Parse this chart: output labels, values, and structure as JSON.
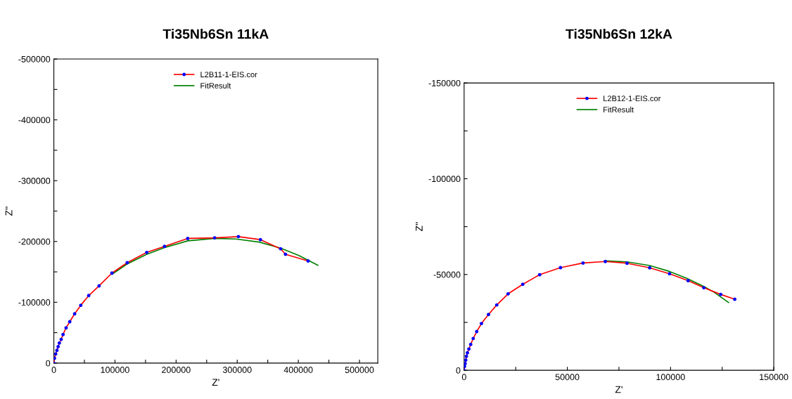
{
  "chart_data": [
    {
      "type": "line",
      "title": "Ti35Nb6Sn 11kA",
      "xlabel": "Z'",
      "ylabel": "Z''",
      "xlim": [
        0,
        530000
      ],
      "ylim": [
        0,
        -500000
      ],
      "xticks": [
        0,
        {
          "value": 50000,
          "label": null
        },
        100000,
        {
          "value": 150000,
          "label": null
        },
        200000,
        {
          "value": 250000,
          "label": null
        },
        300000,
        {
          "value": 350000,
          "label": null
        },
        400000,
        {
          "value": 450000,
          "label": null
        },
        500000
      ],
      "yticks": [
        0,
        {
          "value": -50000,
          "label": null
        },
        -100000,
        {
          "value": -150000,
          "label": null
        },
        -200000,
        {
          "value": -250000,
          "label": null
        },
        -300000,
        {
          "value": -350000,
          "label": null
        },
        -400000,
        {
          "value": -450000,
          "label": null
        },
        -500000
      ],
      "grid": false,
      "legend": "top",
      "series": [
        {
          "name": "L2B11-1-EIS.cor",
          "color": "#ff0000",
          "marker": "circle",
          "x": [
            0,
            1000,
            3000,
            5000,
            7000,
            9000,
            12000,
            15000,
            20000,
            26000,
            34000,
            44000,
            57000,
            74000,
            95000,
            120000,
            152000,
            181000,
            219000,
            263000,
            302000,
            338000,
            371000,
            379000,
            416000
          ],
          "values": [
            0,
            -8000,
            -15000,
            -21000,
            -27000,
            -33000,
            -39000,
            -47000,
            -58000,
            -68000,
            -81000,
            -95000,
            -111000,
            -127000,
            -148000,
            -165000,
            -182000,
            -192000,
            -205000,
            -206000,
            -208000,
            -203000,
            -188000,
            -179000,
            -168000
          ]
        },
        {
          "name": "FitResult",
          "color": "#008000",
          "x": [
            95000,
            120000,
            152000,
            181000,
            219000,
            263000,
            298000,
            336000,
            371000,
            401000,
            432000
          ],
          "values": [
            -146000,
            -163000,
            -179000,
            -190000,
            -201000,
            -205000,
            -204000,
            -199000,
            -189000,
            -177000,
            -161000
          ]
        }
      ]
    },
    {
      "type": "line",
      "title": "Ti35Nb6Sn 12kA",
      "xlabel": "Z'",
      "ylabel": "Z''",
      "xlim": [
        0,
        150000
      ],
      "ylim": [
        0,
        -150000
      ],
      "xticks": [
        0,
        {
          "value": 25000,
          "label": null
        },
        50000,
        {
          "value": 75000,
          "label": null
        },
        100000,
        {
          "value": 125000,
          "label": null
        },
        150000
      ],
      "yticks": [
        0,
        {
          "value": -25000,
          "label": null
        },
        -50000,
        {
          "value": -75000,
          "label": null
        },
        -100000,
        {
          "value": -125000,
          "label": null
        },
        -150000
      ],
      "grid": false,
      "legend": "top",
      "series": [
        {
          "name": "L2B12-1-EIS.cor",
          "color": "#ff0000",
          "marker": "circle",
          "x": [
            0,
            200,
            500,
            800,
            1100,
            1600,
            2300,
            3200,
            4400,
            6100,
            8400,
            11800,
            15800,
            21300,
            28400,
            36600,
            46700,
            57600,
            68400,
            78900,
            89900,
            99500,
            108500,
            116100,
            124300,
            131100
          ],
          "values": [
            0,
            -2000,
            -3500,
            -5300,
            -7300,
            -9100,
            -11100,
            -13500,
            -16600,
            -20200,
            -24400,
            -29100,
            -34100,
            -39900,
            -44900,
            -49900,
            -53600,
            -56000,
            -56800,
            -55900,
            -53500,
            -50400,
            -46800,
            -43100,
            -39600,
            -37100
          ]
        },
        {
          "name": "FitResult",
          "color": "#008000",
          "x": [
            68400,
            78900,
            89900,
            99500,
            107700,
            116100,
            121000,
            128100
          ],
          "values": [
            -57100,
            -56600,
            -54700,
            -51600,
            -48100,
            -43800,
            -40800,
            -35400
          ]
        }
      ]
    }
  ]
}
